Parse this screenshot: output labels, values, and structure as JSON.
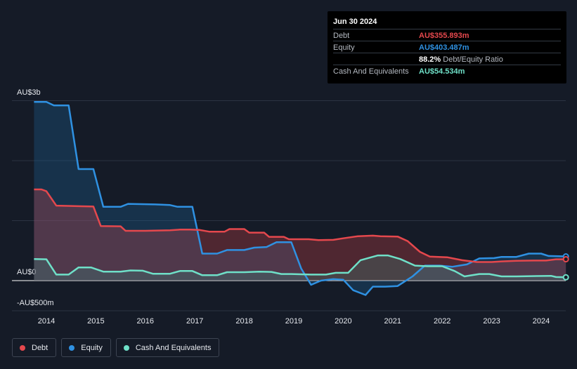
{
  "tooltip": {
    "date": "Jun 30 2024",
    "rows": [
      {
        "label": "Debt",
        "value": "AU$355.893m",
        "suffix": "",
        "color": "#e5484d"
      },
      {
        "label": "Equity",
        "value": "AU$403.487m",
        "suffix": "",
        "color": "#2f91e2"
      },
      {
        "label": "",
        "value": "88.2%",
        "suffix": "Debt/Equity Ratio",
        "color": "#ffffff"
      },
      {
        "label": "Cash And Equivalents",
        "value": "AU$54.534m",
        "suffix": "",
        "color": "#6fe0c8"
      }
    ]
  },
  "legend": [
    {
      "label": "Debt",
      "color": "#e5484d"
    },
    {
      "label": "Equity",
      "color": "#2f91e2"
    },
    {
      "label": "Cash And Equivalents",
      "color": "#6fe0c8"
    }
  ],
  "chart_data": {
    "type": "area",
    "x_ticks": [
      2014,
      2015,
      2016,
      2017,
      2018,
      2019,
      2020,
      2021,
      2022,
      2023,
      2024
    ],
    "y_labels": [
      {
        "value": 3000,
        "text": "AU$3b"
      },
      {
        "value": 0,
        "text": "AU$0"
      },
      {
        "value": -500,
        "text": "-AU$500m"
      }
    ],
    "y_grid": [
      3000,
      2000,
      1000,
      0
    ],
    "xlim": [
      2013.25,
      2024.5
    ],
    "ylim": [
      -500,
      3000
    ],
    "units": "AU$ millions",
    "series": [
      {
        "name": "Debt",
        "color": "#e5484d",
        "fill": "#e5484d",
        "points": [
          [
            2013.75,
            1520
          ],
          [
            2013.9,
            1520
          ],
          [
            2014.0,
            1490
          ],
          [
            2014.2,
            1250
          ],
          [
            2014.5,
            1245
          ],
          [
            2014.7,
            1240
          ],
          [
            2014.95,
            1235
          ],
          [
            2015.1,
            910
          ],
          [
            2015.5,
            905
          ],
          [
            2015.6,
            830
          ],
          [
            2016.0,
            830
          ],
          [
            2016.5,
            840
          ],
          [
            2016.7,
            850
          ],
          [
            2016.9,
            850
          ],
          [
            2017.1,
            845
          ],
          [
            2017.3,
            815
          ],
          [
            2017.6,
            815
          ],
          [
            2017.7,
            860
          ],
          [
            2018.0,
            860
          ],
          [
            2018.1,
            800
          ],
          [
            2018.4,
            800
          ],
          [
            2018.5,
            730
          ],
          [
            2018.8,
            730
          ],
          [
            2018.9,
            690
          ],
          [
            2019.3,
            690
          ],
          [
            2019.5,
            675
          ],
          [
            2019.8,
            680
          ],
          [
            2020.0,
            705
          ],
          [
            2020.3,
            740
          ],
          [
            2020.6,
            750
          ],
          [
            2020.75,
            740
          ],
          [
            2021.1,
            735
          ],
          [
            2021.3,
            660
          ],
          [
            2021.55,
            480
          ],
          [
            2021.75,
            400
          ],
          [
            2022.1,
            390
          ],
          [
            2022.4,
            340
          ],
          [
            2022.7,
            310
          ],
          [
            2023.0,
            310
          ],
          [
            2023.2,
            320
          ],
          [
            2023.5,
            330
          ],
          [
            2023.85,
            335
          ],
          [
            2024.1,
            335
          ],
          [
            2024.3,
            355
          ],
          [
            2024.5,
            356
          ]
        ]
      },
      {
        "name": "Equity",
        "color": "#2f91e2",
        "fill": "#1d5f8f",
        "points": [
          [
            2013.75,
            2980
          ],
          [
            2014.0,
            2980
          ],
          [
            2014.15,
            2920
          ],
          [
            2014.45,
            2920
          ],
          [
            2014.65,
            1860
          ],
          [
            2014.95,
            1860
          ],
          [
            2015.15,
            1230
          ],
          [
            2015.5,
            1230
          ],
          [
            2015.65,
            1280
          ],
          [
            2016.2,
            1270
          ],
          [
            2016.5,
            1260
          ],
          [
            2016.65,
            1230
          ],
          [
            2016.95,
            1230
          ],
          [
            2017.15,
            450
          ],
          [
            2017.45,
            450
          ],
          [
            2017.65,
            510
          ],
          [
            2018.0,
            510
          ],
          [
            2018.2,
            550
          ],
          [
            2018.45,
            560
          ],
          [
            2018.65,
            640
          ],
          [
            2018.95,
            640
          ],
          [
            2019.15,
            200
          ],
          [
            2019.35,
            -70
          ],
          [
            2019.55,
            0
          ],
          [
            2019.8,
            25
          ],
          [
            2020.0,
            15
          ],
          [
            2020.2,
            -160
          ],
          [
            2020.45,
            -240
          ],
          [
            2020.6,
            -100
          ],
          [
            2020.85,
            -100
          ],
          [
            2021.1,
            -90
          ],
          [
            2021.4,
            70
          ],
          [
            2021.65,
            250
          ],
          [
            2021.95,
            250
          ],
          [
            2022.2,
            230
          ],
          [
            2022.5,
            270
          ],
          [
            2022.75,
            370
          ],
          [
            2023.05,
            375
          ],
          [
            2023.2,
            395
          ],
          [
            2023.5,
            395
          ],
          [
            2023.75,
            450
          ],
          [
            2024.0,
            450
          ],
          [
            2024.15,
            410
          ],
          [
            2024.5,
            403
          ]
        ]
      },
      {
        "name": "Cash And Equivalents",
        "color": "#6fe0c8",
        "fill": "#3a8c80",
        "points": [
          [
            2013.75,
            360
          ],
          [
            2014.0,
            355
          ],
          [
            2014.2,
            100
          ],
          [
            2014.45,
            100
          ],
          [
            2014.65,
            220
          ],
          [
            2014.9,
            220
          ],
          [
            2015.15,
            150
          ],
          [
            2015.5,
            150
          ],
          [
            2015.7,
            170
          ],
          [
            2015.95,
            165
          ],
          [
            2016.15,
            115
          ],
          [
            2016.5,
            115
          ],
          [
            2016.7,
            160
          ],
          [
            2016.95,
            160
          ],
          [
            2017.15,
            90
          ],
          [
            2017.45,
            90
          ],
          [
            2017.65,
            140
          ],
          [
            2018.0,
            140
          ],
          [
            2018.3,
            150
          ],
          [
            2018.55,
            145
          ],
          [
            2018.75,
            110
          ],
          [
            2018.95,
            110
          ],
          [
            2019.35,
            100
          ],
          [
            2019.65,
            100
          ],
          [
            2019.85,
            130
          ],
          [
            2020.1,
            130
          ],
          [
            2020.35,
            340
          ],
          [
            2020.7,
            420
          ],
          [
            2020.9,
            420
          ],
          [
            2021.15,
            360
          ],
          [
            2021.45,
            250
          ],
          [
            2021.7,
            240
          ],
          [
            2022.0,
            240
          ],
          [
            2022.25,
            160
          ],
          [
            2022.45,
            70
          ],
          [
            2022.75,
            110
          ],
          [
            2022.95,
            110
          ],
          [
            2023.2,
            70
          ],
          [
            2023.5,
            70
          ],
          [
            2023.8,
            75
          ],
          [
            2024.2,
            80
          ],
          [
            2024.3,
            60
          ],
          [
            2024.5,
            55
          ]
        ]
      }
    ]
  }
}
